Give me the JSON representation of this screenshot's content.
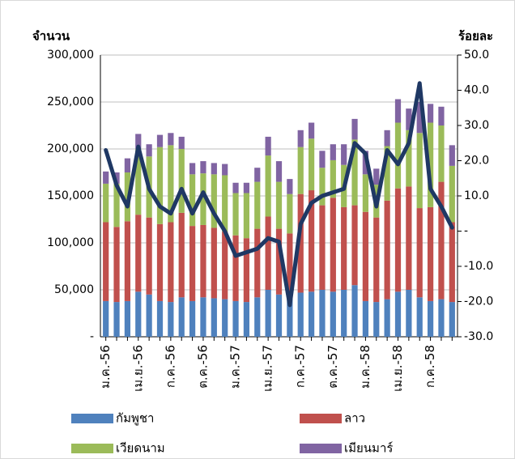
{
  "chart_data": {
    "type": "bar",
    "stacked": true,
    "y_label": "จำนวน",
    "y2_label": "ร้อยละ",
    "categories": [
      "ม.ค.-56",
      null,
      null,
      "เม.ย.-56",
      null,
      null,
      "ก.ค.-56",
      null,
      null,
      "ต.ค.-56",
      null,
      null,
      "ม.ค.-57",
      null,
      null,
      "เม.ย.-57",
      null,
      null,
      "ก.ค.-57",
      null,
      null,
      "ต.ค.-57",
      null,
      null,
      "ม.ค.-58",
      null,
      null,
      "เม.ย.-58",
      null,
      null,
      "ก.ค.-58",
      null,
      null
    ],
    "series": [
      {
        "name": "กัมพูชา",
        "color": "#4f81bd",
        "values": [
          38000,
          37000,
          38000,
          48000,
          45000,
          38000,
          37000,
          42000,
          38000,
          42000,
          41000,
          40000,
          38000,
          37000,
          42000,
          50000,
          45000,
          42000,
          47000,
          48000,
          50000,
          48000,
          50000,
          55000,
          38000,
          37000,
          40000,
          48000,
          50000,
          42000,
          38000,
          40000,
          37000
        ]
      },
      {
        "name": "ลาว",
        "color": "#c0504d",
        "values": [
          84000,
          80000,
          85000,
          82000,
          82000,
          82000,
          85000,
          90000,
          80000,
          77000,
          75000,
          72000,
          70000,
          68000,
          73000,
          78000,
          70000,
          68000,
          105000,
          108000,
          90000,
          100000,
          88000,
          85000,
          95000,
          90000,
          105000,
          110000,
          110000,
          95000,
          100000,
          125000,
          85000
        ]
      },
      {
        "name": "เวียดนาม",
        "color": "#9bbb59",
        "values": [
          41000,
          46000,
          52000,
          70000,
          65000,
          82000,
          82000,
          68000,
          55000,
          55000,
          57000,
          60000,
          45000,
          48000,
          50000,
          65000,
          50000,
          42000,
          50000,
          55000,
          40000,
          40000,
          45000,
          70000,
          40000,
          35000,
          58000,
          70000,
          60000,
          80000,
          90000,
          60000,
          60000
        ]
      },
      {
        "name": "เมียนมาร์",
        "color": "#8064a2",
        "values": [
          13000,
          12000,
          15000,
          16000,
          13000,
          13000,
          13000,
          13000,
          12000,
          13000,
          12000,
          12000,
          11000,
          11000,
          15000,
          20000,
          22000,
          16000,
          18000,
          17000,
          18000,
          17000,
          22000,
          22000,
          25000,
          17000,
          17000,
          25000,
          23000,
          33000,
          20000,
          20000,
          22000
        ]
      },
      {
        "type": "line",
        "axis": "y2",
        "color": "#1f3864",
        "values": [
          23,
          13,
          7,
          24,
          12,
          7,
          5,
          12,
          5,
          11,
          5,
          0,
          -7,
          -6,
          -5,
          -2,
          -3,
          -21,
          2,
          8,
          10,
          11,
          12,
          25,
          22,
          7,
          23,
          19,
          25,
          42,
          12,
          7,
          1
        ]
      }
    ],
    "ylim": [
      0,
      300000
    ],
    "yticks": [
      {
        "value": 0,
        "label": "-"
      },
      {
        "value": 50000,
        "label": "50,000"
      },
      {
        "value": 100000,
        "label": "100,000"
      },
      {
        "value": 150000,
        "label": "150,000"
      },
      {
        "value": 200000,
        "label": "200,000"
      },
      {
        "value": 250000,
        "label": "250,000"
      },
      {
        "value": 300000,
        "label": "300,000"
      }
    ],
    "y2lim": [
      -30,
      50
    ],
    "y2ticks": [
      {
        "value": -30,
        "label": "-30.0"
      },
      {
        "value": -20,
        "label": "-20.0"
      },
      {
        "value": -10,
        "label": "-10.0"
      },
      {
        "value": 0,
        "label": "-"
      },
      {
        "value": 10,
        "label": "10.0"
      },
      {
        "value": 20,
        "label": "20.0"
      },
      {
        "value": 30,
        "label": "30.0"
      },
      {
        "value": 40,
        "label": "40.0"
      },
      {
        "value": 50,
        "label": "50.0"
      }
    ],
    "grid": true
  }
}
